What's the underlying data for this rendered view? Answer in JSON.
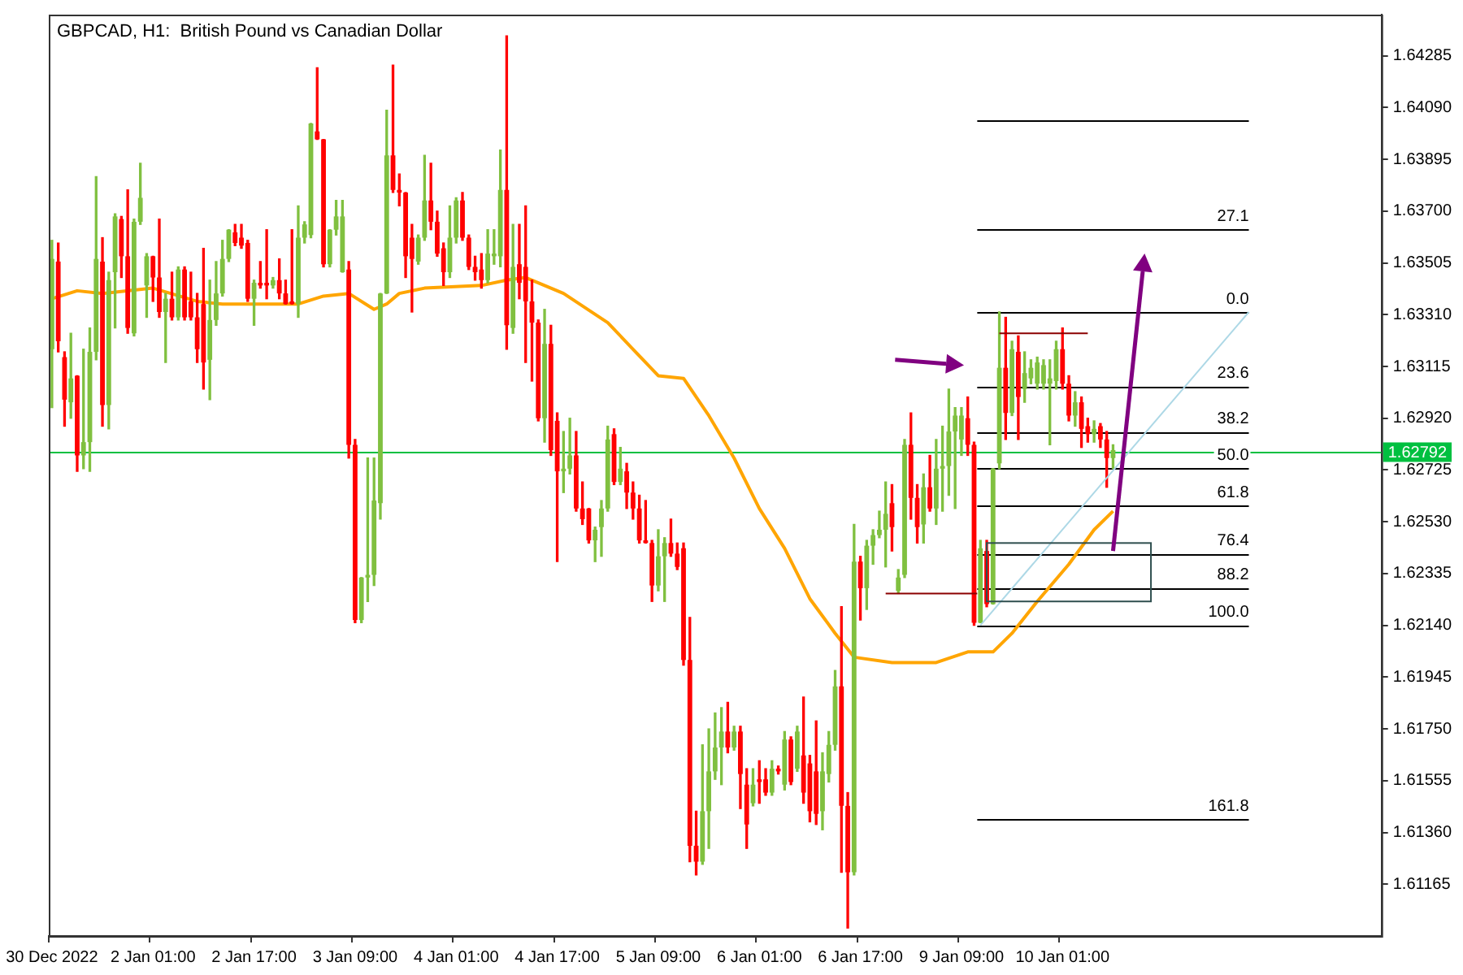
{
  "chart_data": {
    "type": "candlestick",
    "title": "GBPCAD, H1:  British Pound vs Canadian Dollar",
    "marker": "none",
    "categories": [
      "30 Dec 2022",
      null,
      null,
      null,
      null,
      null,
      null,
      null,
      null,
      null,
      null,
      null,
      null,
      null,
      null,
      null,
      "2 Jan 01:00",
      null,
      null,
      null,
      null,
      null,
      null,
      null,
      null,
      null,
      null,
      null,
      null,
      null,
      null,
      null,
      "2 Jan 17:00",
      null,
      null,
      null,
      null,
      null,
      null,
      null,
      null,
      null,
      null,
      null,
      null,
      null,
      null,
      null,
      "3 Jan 09:00",
      null,
      null,
      null,
      null,
      null,
      null,
      null,
      null,
      null,
      null,
      null,
      null,
      null,
      null,
      null,
      "4 Jan 01:00",
      null,
      null,
      null,
      null,
      null,
      null,
      null,
      null,
      null,
      null,
      null,
      null,
      null,
      null,
      null,
      "4 Jan 17:00",
      null,
      null,
      null,
      null,
      null,
      null,
      null,
      null,
      null,
      null,
      null,
      null,
      null,
      null,
      null,
      "5 Jan 09:00",
      null,
      null,
      null,
      null,
      null,
      null,
      null,
      null,
      null,
      null,
      null,
      null,
      null,
      null,
      null,
      "6 Jan 01:00",
      null,
      null,
      null,
      null,
      null,
      null,
      null,
      null,
      null,
      null,
      null,
      null,
      null,
      null,
      null,
      "6 Jan 17:00",
      null,
      null,
      null,
      null,
      null,
      null,
      null,
      null,
      null,
      null,
      null,
      null,
      null,
      null,
      null,
      "9 Jan 09:00",
      null,
      null,
      null,
      null,
      null,
      null,
      null,
      null,
      null,
      null,
      null,
      null,
      null,
      null,
      null,
      "10 Jan 01:00",
      null,
      null,
      null,
      null,
      null,
      null,
      null,
      null,
      null,
      null,
      null,
      null,
      null,
      null,
      null,
      null,
      null,
      null,
      null,
      null,
      null,
      null,
      null,
      null,
      null,
      null,
      null,
      null,
      null,
      null,
      null,
      null,
      null,
      null,
      null,
      null,
      null,
      null,
      null,
      null,
      null,
      null,
      null,
      null,
      null,
      null,
      null,
      null,
      null,
      null
    ],
    "ohlc": [
      [
        1.6318,
        1.6359,
        1.6296,
        1.6352
      ],
      [
        1.6351,
        1.6358,
        1.6317,
        1.6321
      ],
      [
        1.6315,
        1.6317,
        1.6289,
        1.6299
      ],
      [
        1.6298,
        1.6324,
        1.6292,
        1.6307
      ],
      [
        1.6308,
        1.6308,
        1.6272,
        1.6278
      ],
      [
        1.6278,
        1.6318,
        1.6273,
        1.6283
      ],
      [
        1.6283,
        1.6326,
        1.6272,
        1.6317
      ],
      [
        1.6317,
        1.6383,
        1.6314,
        1.6352
      ],
      [
        1.6351,
        1.636,
        1.6289,
        1.6297
      ],
      [
        1.6297,
        1.6347,
        1.6288,
        1.6344
      ],
      [
        1.6347,
        1.6369,
        1.6326,
        1.6368
      ],
      [
        1.6367,
        1.6368,
        1.6345,
        1.6353
      ],
      [
        1.6353,
        1.6378,
        1.6324,
        1.6326
      ],
      [
        1.6324,
        1.6367,
        1.6323,
        1.6366
      ],
      [
        1.6366,
        1.6388,
        1.6365,
        1.6375
      ],
      [
        1.6342,
        1.6354,
        1.633,
        1.6353
      ],
      [
        1.6353,
        1.6353,
        1.6336,
        1.6345
      ],
      [
        1.6345,
        1.6367,
        1.633,
        1.6332
      ],
      [
        1.6332,
        1.6339,
        1.6313,
        1.6337
      ],
      [
        1.6337,
        1.6347,
        1.6329,
        1.633
      ],
      [
        1.633,
        1.6349,
        1.6329,
        1.6348
      ],
      [
        1.6348,
        1.6349,
        1.6329,
        1.633
      ],
      [
        1.6336,
        1.6347,
        1.6329,
        1.633
      ],
      [
        1.633,
        1.6339,
        1.6313,
        1.6318
      ],
      [
        1.6335,
        1.6356,
        1.6303,
        1.6313
      ],
      [
        1.6314,
        1.6344,
        1.6299,
        1.6329
      ],
      [
        1.6329,
        1.6351,
        1.6327,
        1.6339
      ],
      [
        1.6339,
        1.6359,
        1.6338,
        1.6352
      ],
      [
        1.6352,
        1.6363,
        1.6351,
        1.6363
      ],
      [
        1.6362,
        1.6365,
        1.6357,
        1.6358
      ],
      [
        1.636,
        1.6365,
        1.6356,
        1.6357
      ],
      [
        1.6358,
        1.6359,
        1.6336,
        1.6337
      ],
      [
        1.6337,
        1.6344,
        1.6327,
        1.6343
      ],
      [
        1.6343,
        1.6351,
        1.6341,
        1.6342
      ],
      [
        1.6343,
        1.6363,
        1.6337,
        1.6342
      ],
      [
        1.6342,
        1.6345,
        1.6341,
        1.6344
      ],
      [
        1.6344,
        1.6352,
        1.6337,
        1.6339
      ],
      [
        1.6339,
        1.6344,
        1.6335,
        1.6335
      ],
      [
        1.6336,
        1.6363,
        1.6335,
        1.6335
      ],
      [
        1.6335,
        1.6372,
        1.633,
        1.636
      ],
      [
        1.636,
        1.6366,
        1.6358,
        1.6365
      ],
      [
        1.6361,
        1.6403,
        1.636,
        1.6403
      ],
      [
        1.64,
        1.6424,
        1.6397,
        1.6397
      ],
      [
        1.6397,
        1.6397,
        1.6349,
        1.635
      ],
      [
        1.635,
        1.6363,
        1.6349,
        1.6363
      ],
      [
        1.6363,
        1.6374,
        1.6361,
        1.6368
      ],
      [
        1.6347,
        1.6374,
        1.6347,
        1.6368
      ],
      [
        1.6348,
        1.6351,
        1.6277,
        1.6282
      ],
      [
        1.6282,
        1.6284,
        1.6215,
        1.6216
      ],
      [
        1.6216,
        1.6232,
        1.6215,
        1.6232
      ],
      [
        1.6232,
        1.6277,
        1.6223,
        1.6233
      ],
      [
        1.6233,
        1.6277,
        1.6229,
        1.6261
      ],
      [
        1.626,
        1.6339,
        1.6254,
        1.6339
      ],
      [
        1.6339,
        1.6408,
        1.6339,
        1.6391
      ],
      [
        1.6391,
        1.6425,
        1.6377,
        1.6378
      ],
      [
        1.6378,
        1.6384,
        1.6372,
        1.6377
      ],
      [
        1.6377,
        1.6377,
        1.6345,
        1.6353
      ],
      [
        1.636,
        1.6365,
        1.6332,
        1.6352
      ],
      [
        1.6351,
        1.6361,
        1.635,
        1.636
      ],
      [
        1.636,
        1.6391,
        1.6359,
        1.6374
      ],
      [
        1.6374,
        1.6388,
        1.6363,
        1.6366
      ],
      [
        1.6366,
        1.637,
        1.6353,
        1.6354
      ],
      [
        1.6356,
        1.6358,
        1.6342,
        1.6347
      ],
      [
        1.6347,
        1.6372,
        1.6345,
        1.636
      ],
      [
        1.636,
        1.6375,
        1.6358,
        1.6374
      ],
      [
        1.6374,
        1.6377,
        1.6359,
        1.636
      ],
      [
        1.636,
        1.6361,
        1.6348,
        1.6349
      ],
      [
        1.6349,
        1.6353,
        1.6344,
        1.6347
      ],
      [
        1.6348,
        1.6354,
        1.6341,
        1.6344
      ],
      [
        1.6344,
        1.6363,
        1.6343,
        1.6354
      ],
      [
        1.6353,
        1.6363,
        1.635,
        1.6354
      ],
      [
        1.6353,
        1.6393,
        1.6349,
        1.6378
      ],
      [
        1.6378,
        1.6436,
        1.6318,
        1.6327
      ],
      [
        1.6326,
        1.6365,
        1.6324,
        1.6349
      ],
      [
        1.635,
        1.6365,
        1.6337,
        1.6343
      ],
      [
        1.6349,
        1.6372,
        1.6313,
        1.6336
      ],
      [
        1.6336,
        1.6344,
        1.6306,
        1.6328
      ],
      [
        1.6328,
        1.6329,
        1.6291,
        1.6292
      ],
      [
        1.6292,
        1.6333,
        1.6283,
        1.632
      ],
      [
        1.632,
        1.6327,
        1.6278,
        1.628
      ],
      [
        1.6291,
        1.6294,
        1.6238,
        1.6272
      ],
      [
        1.6272,
        1.6287,
        1.6264,
        1.6273
      ],
      [
        1.6273,
        1.6292,
        1.6271,
        1.6278
      ],
      [
        1.6278,
        1.6287,
        1.6257,
        1.6258
      ],
      [
        1.6258,
        1.6268,
        1.6252,
        1.6254
      ],
      [
        1.6258,
        1.6258,
        1.6245,
        1.6246
      ],
      [
        1.6246,
        1.6251,
        1.6238,
        1.625
      ],
      [
        1.6251,
        1.6261,
        1.624,
        1.6258
      ],
      [
        1.6258,
        1.6289,
        1.6257,
        1.6284
      ],
      [
        1.6286,
        1.6288,
        1.6267,
        1.6268
      ],
      [
        1.6268,
        1.6281,
        1.6267,
        1.6273
      ],
      [
        1.6272,
        1.6275,
        1.6258,
        1.6264
      ],
      [
        1.6264,
        1.6268,
        1.6254,
        1.6258
      ],
      [
        1.6258,
        1.6263,
        1.6245,
        1.6246
      ],
      [
        1.6246,
        1.6261,
        1.6245,
        1.6245
      ],
      [
        1.6245,
        1.6246,
        1.6223,
        1.6229
      ],
      [
        1.6229,
        1.625,
        1.6227,
        1.624
      ],
      [
        1.624,
        1.6247,
        1.6223,
        1.6245
      ],
      [
        1.6245,
        1.6254,
        1.624,
        1.6241
      ],
      [
        1.6241,
        1.6245,
        1.6235,
        1.6236
      ],
      [
        1.6243,
        1.6245,
        1.6199,
        1.6201
      ],
      [
        1.6201,
        1.6217,
        1.6125,
        1.6131
      ],
      [
        1.6131,
        1.6144,
        1.612,
        1.6125
      ],
      [
        1.6125,
        1.6169,
        1.6124,
        1.6144
      ],
      [
        1.6144,
        1.6175,
        1.613,
        1.6159
      ],
      [
        1.6159,
        1.6181,
        1.6156,
        1.6168
      ],
      [
        1.6168,
        1.6183,
        1.6154,
        1.6174
      ],
      [
        1.6174,
        1.6185,
        1.6166,
        1.6168
      ],
      [
        1.6168,
        1.6176,
        1.6167,
        1.6174
      ],
      [
        1.6174,
        1.6176,
        1.6145,
        1.6158
      ],
      [
        1.6154,
        1.616,
        1.613,
        1.6139
      ],
      [
        1.6147,
        1.616,
        1.6146,
        1.6154
      ],
      [
        1.6156,
        1.6163,
        1.6147,
        1.6155
      ],
      [
        1.6156,
        1.616,
        1.615,
        1.6151
      ],
      [
        1.6151,
        1.6163,
        1.615,
        1.616
      ],
      [
        1.616,
        1.6161,
        1.6158,
        1.6159
      ],
      [
        1.6154,
        1.6174,
        1.6152,
        1.6171
      ],
      [
        1.6171,
        1.6172,
        1.6154,
        1.6155
      ],
      [
        1.616,
        1.6176,
        1.6159,
        1.6174
      ],
      [
        1.6165,
        1.6187,
        1.6147,
        1.6151
      ],
      [
        1.6162,
        1.6165,
        1.614,
        1.6144
      ],
      [
        1.6159,
        1.6178,
        1.6139,
        1.6143
      ],
      [
        1.6144,
        1.6166,
        1.6137,
        1.6159
      ],
      [
        1.6158,
        1.6174,
        1.6155,
        1.6169
      ],
      [
        1.6169,
        1.6197,
        1.6167,
        1.6191
      ],
      [
        1.6191,
        1.6221,
        1.6121,
        1.6146
      ],
      [
        1.6146,
        1.6151,
        1.61,
        1.6121
      ],
      [
        1.6121,
        1.6252,
        1.612,
        1.6238
      ],
      [
        1.6238,
        1.624,
        1.6216,
        1.6228
      ],
      [
        1.6228,
        1.6246,
        1.622,
        1.6244
      ],
      [
        1.6244,
        1.625,
        1.6237,
        1.6248
      ],
      [
        1.6248,
        1.6257,
        1.6247,
        1.625
      ],
      [
        1.625,
        1.6268,
        1.6236,
        1.6256
      ],
      [
        1.626,
        1.6267,
        1.6242,
        1.6251
      ],
      [
        1.6227,
        1.6235,
        1.6226,
        1.6232
      ],
      [
        1.6233,
        1.6284,
        1.6232,
        1.6282
      ],
      [
        1.6282,
        1.6294,
        1.6254,
        1.6262
      ],
      [
        1.6262,
        1.6267,
        1.6245,
        1.6251
      ],
      [
        1.6252,
        1.6271,
        1.6245,
        1.6266
      ],
      [
        1.6266,
        1.6278,
        1.6257,
        1.6258
      ],
      [
        1.6258,
        1.6284,
        1.6252,
        1.6273
      ],
      [
        1.6273,
        1.6289,
        1.6257,
        1.6274
      ],
      [
        1.6274,
        1.6303,
        1.6263,
        1.6287
      ],
      [
        1.6287,
        1.6296,
        1.6258,
        1.6293
      ],
      [
        1.6284,
        1.6296,
        1.6278,
        1.6293
      ],
      [
        1.6292,
        1.63,
        1.6278,
        1.6282
      ],
      [
        1.6282,
        1.6283,
        1.6214,
        1.6215
      ],
      [
        1.6215,
        1.6246,
        1.6215,
        1.6243
      ],
      [
        1.6242,
        1.6246,
        1.6221,
        1.6222
      ],
      [
        1.6222,
        1.6273,
        1.6222,
        1.6273
      ],
      [
        1.6275,
        1.6332,
        1.6273,
        1.6311
      ],
      [
        1.6311,
        1.633,
        1.6284,
        1.6294
      ],
      [
        1.6294,
        1.6321,
        1.6293,
        1.6318
      ],
      [
        1.6317,
        1.6323,
        1.6284,
        1.63
      ],
      [
        1.6303,
        1.6317,
        1.6298,
        1.6309
      ],
      [
        1.6307,
        1.6314,
        1.6305,
        1.6311
      ],
      [
        1.6305,
        1.6315,
        1.6303,
        1.6313
      ],
      [
        1.6305,
        1.6314,
        1.6303,
        1.6312
      ],
      [
        1.6305,
        1.6314,
        1.6282,
        1.6307
      ],
      [
        1.6306,
        1.6321,
        1.6303,
        1.6318
      ],
      [
        1.6318,
        1.6326,
        1.6303,
        1.6305
      ],
      [
        1.6305,
        1.6308,
        1.6291,
        1.6293
      ],
      [
        1.6293,
        1.6302,
        1.6289,
        1.6298
      ],
      [
        1.6298,
        1.63,
        1.6281,
        1.6288
      ],
      [
        1.6289,
        1.6292,
        1.6283,
        1.6286
      ],
      [
        1.6286,
        1.6291,
        1.6283,
        1.6288
      ],
      [
        1.6289,
        1.629,
        1.6281,
        1.6284
      ],
      [
        1.6284,
        1.6287,
        1.6266,
        1.6277
      ],
      [
        1.6277,
        1.6282,
        1.6273,
        1.628
      ],
      null,
      null,
      null,
      null,
      null,
      null,
      null,
      null,
      null,
      null,
      null,
      null,
      null,
      null,
      null,
      null,
      null,
      null,
      null,
      null,
      null,
      null,
      null,
      null,
      null,
      null,
      null,
      null,
      null,
      null,
      null,
      null,
      null,
      null,
      null,
      null,
      null,
      null,
      null,
      null,
      null,
      null
    ],
    "colors": [
      "#80c040",
      "#ff0000",
      "#ff0000",
      "#80c040",
      "#ff0000",
      "#80c040",
      "#80c040",
      "#80c040",
      "#ff0000",
      "#80c040",
      "#80c040",
      "#ff0000",
      "#ff0000",
      "#80c040",
      "#80c040",
      "#80c040",
      "#ff0000",
      "#ff0000",
      "#80c040",
      "#ff0000",
      "#80c040",
      "#ff0000",
      "#ff0000",
      "#ff0000",
      "#ff0000",
      "#80c040",
      "#80c040",
      "#80c040",
      "#80c040",
      "#ff0000",
      "#ff0000",
      "#ff0000",
      "#80c040",
      "#ff0000",
      "#ff0000",
      "#80c040",
      "#ff0000",
      "#ff0000",
      "#ff0000",
      "#80c040",
      "#80c040",
      "#80c040",
      "#ff0000",
      "#ff0000",
      "#80c040",
      "#80c040",
      "#80c040",
      "#ff0000",
      "#ff0000",
      "#80c040",
      "#80c040",
      "#80c040",
      "#80c040",
      "#80c040",
      "#ff0000",
      "#ff0000",
      "#ff0000",
      "#ff0000",
      "#80c040",
      "#80c040",
      "#ff0000",
      "#ff0000",
      "#ff0000",
      "#80c040",
      "#80c040",
      "#ff0000",
      "#ff0000",
      "#ff0000",
      "#ff0000",
      "#80c040",
      "#80c040",
      "#80c040",
      "#ff0000",
      "#80c040",
      "#ff0000",
      "#ff0000",
      "#ff0000",
      "#ff0000",
      "#80c040",
      "#ff0000",
      "#ff0000",
      "#80c040",
      "#80c040",
      "#ff0000",
      "#ff0000",
      "#ff0000",
      "#80c040",
      "#80c040",
      "#80c040",
      "#ff0000",
      "#80c040",
      "#ff0000",
      "#ff0000",
      "#ff0000",
      "#ff0000",
      "#ff0000",
      "#80c040",
      "#80c040",
      "#ff0000",
      "#ff0000",
      "#ff0000",
      "#ff0000",
      "#ff0000",
      "#80c040",
      "#80c040",
      "#80c040",
      "#80c040",
      "#ff0000",
      "#80c040",
      "#ff0000",
      "#ff0000",
      "#80c040",
      "#ff0000",
      "#ff0000",
      "#80c040",
      "#ff0000",
      "#80c040",
      "#ff0000",
      "#80c040",
      "#ff0000",
      "#ff0000",
      "#ff0000",
      "#80c040",
      "#80c040",
      "#80c040",
      "#ff0000",
      "#ff0000",
      "#80c040",
      "#ff0000",
      "#80c040",
      "#80c040",
      "#80c040",
      "#80c040",
      "#ff0000",
      "#80c040",
      "#80c040",
      "#ff0000",
      "#ff0000",
      "#80c040",
      "#ff0000",
      "#80c040",
      "#80c040",
      "#80c040",
      "#80c040",
      "#80c040",
      "#ff0000",
      "#ff0000",
      "#80c040",
      "#ff0000",
      "#80c040",
      "#80c040",
      "#ff0000",
      "#80c040",
      "#ff0000",
      "#80c040",
      "#80c040",
      "#80c040",
      "#80c040",
      "#80c040",
      "#80c040",
      "#ff0000",
      "#ff0000",
      "#80c040",
      "#ff0000",
      "#ff0000",
      "#80c040",
      "#ff0000",
      "#ff0000",
      "#80c040",
      null,
      null,
      null,
      null,
      null,
      null,
      null,
      null,
      null,
      null,
      null,
      null,
      null,
      null,
      null,
      null,
      null,
      null,
      null,
      null,
      null,
      null,
      null,
      null,
      null,
      null,
      null,
      null,
      null,
      null,
      null,
      null,
      null,
      null,
      null,
      null,
      null,
      null,
      null,
      null,
      null,
      null
    ],
    "series": [
      {
        "type": "line",
        "color": "#ffa500",
        "values": [
          1.6337,
          null,
          null,
          null,
          1.634,
          null,
          null,
          null,
          1.6339,
          null,
          null,
          null,
          null,
          null,
          null,
          null,
          1.6341,
          null,
          null,
          null,
          null,
          null,
          null,
          1.6336,
          null,
          null,
          null,
          1.6335,
          null,
          null,
          null,
          null,
          null,
          null,
          null,
          null,
          null,
          null,
          null,
          1.6335,
          null,
          null,
          null,
          1.6338,
          null,
          null,
          null,
          1.6339,
          null,
          null,
          null,
          1.6333,
          null,
          1.6335,
          null,
          1.6339,
          null,
          null,
          null,
          1.6341,
          null,
          null,
          null,
          null,
          null,
          null,
          null,
          null,
          1.6342,
          null,
          null,
          null,
          1.6344,
          null,
          null,
          1.6345,
          null,
          null,
          null,
          null,
          null,
          1.6339,
          null,
          null,
          null,
          null,
          null,
          null,
          1.6328,
          null,
          null,
          null,
          1.6318,
          null,
          null,
          null,
          1.6308,
          null,
          null,
          null,
          1.6307,
          null,
          null,
          null,
          1.6293,
          null,
          null,
          null,
          1.6277,
          null,
          null,
          null,
          1.6258,
          null,
          null,
          null,
          1.6243,
          null,
          null,
          null,
          1.6224,
          null,
          null,
          null,
          1.6211,
          null,
          null,
          1.6202,
          null,
          null,
          null,
          null,
          null,
          1.62,
          null,
          null,
          null,
          null,
          null,
          null,
          1.62,
          null,
          null,
          null,
          null,
          1.6204,
          null,
          null,
          null,
          1.6204,
          null,
          null,
          1.6211,
          null,
          null,
          null,
          1.6223,
          null,
          null,
          null,
          null,
          1.6237,
          null,
          null,
          null,
          1.625,
          null,
          null,
          1.6257,
          null,
          null,
          null,
          null,
          null,
          null,
          null,
          null,
          null,
          null,
          null,
          null,
          null,
          null,
          null,
          null,
          null,
          null,
          null,
          null,
          null,
          null,
          null,
          null,
          null,
          null,
          null,
          null,
          null,
          null,
          null,
          null,
          null,
          null,
          null,
          null,
          null,
          null,
          null,
          null,
          null,
          null
        ]
      }
    ],
    "annotations": [
      {
        "text": "27.1",
        "y": 1.6363
      },
      {
        "text": "0.0",
        "y": 1.6332
      },
      {
        "text": "23.6",
        "y": 1.6304
      },
      {
        "text": "38.2",
        "y": 1.6287
      },
      {
        "text": "50.0",
        "y": 1.6273
      },
      {
        "text": "61.8",
        "y": 1.6259
      },
      {
        "text": "76.4",
        "y": 1.6241
      },
      {
        "text": "88.2",
        "y": 1.6228
      },
      {
        "text": "100.0",
        "y": 1.6214
      },
      {
        "text": "161.8",
        "y": 1.6141
      }
    ],
    "ref_lines": [
      {
        "axis": "y",
        "value": 1.62792,
        "label": "1.62792",
        "color": "#00c040"
      },
      {
        "axis": "y",
        "value": 1.6404,
        "color": "#000000"
      },
      {
        "axis": "y",
        "value": 1.6363,
        "color": "#000000"
      },
      {
        "axis": "y",
        "value": 1.6332,
        "color": "#000000"
      },
      {
        "axis": "y",
        "value": 1.6304,
        "color": "#000000"
      },
      {
        "axis": "y",
        "value": 1.6287,
        "color": "#000000"
      },
      {
        "axis": "y",
        "value": 1.6273,
        "color": "#000000"
      },
      {
        "axis": "y",
        "value": 1.6259,
        "color": "#000000"
      },
      {
        "axis": "y",
        "value": 1.6241,
        "color": "#000000"
      },
      {
        "axis": "y",
        "value": 1.6228,
        "color": "#000000"
      },
      {
        "axis": "y",
        "value": 1.6214,
        "color": "#000000"
      },
      {
        "axis": "y",
        "value": 1.6141,
        "color": "#000000"
      }
    ],
    "ylim": [
      1.6097,
      1.6444
    ],
    "yticks": [
      1.61165,
      {
        "value": 1.6136,
        "label": "1.61360"
      },
      1.61555,
      {
        "value": 1.6175,
        "label": "1.61750"
      },
      1.61945,
      {
        "value": 1.6214,
        "label": "1.62140"
      },
      1.62335,
      {
        "value": 1.6253,
        "label": "1.62530"
      },
      1.62725,
      {
        "value": 1.6292,
        "label": "1.62920"
      },
      1.63115,
      {
        "value": 1.6331,
        "label": "1.63310"
      },
      1.63505,
      {
        "value": 1.637,
        "label": "1.63700"
      },
      1.63895,
      {
        "value": 1.6409,
        "label": "1.64090"
      },
      1.64285
    ]
  }
}
